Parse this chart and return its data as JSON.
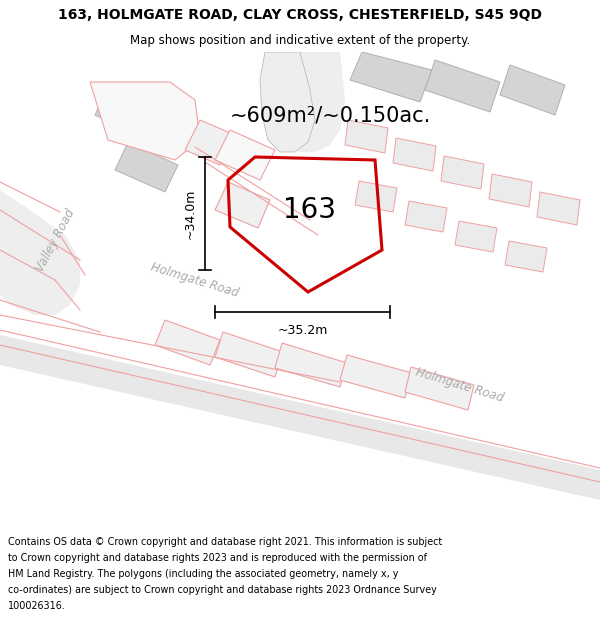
{
  "title": "163, HOLMGATE ROAD, CLAY CROSS, CHESTERFIELD, S45 9QD",
  "subtitle": "Map shows position and indicative extent of the property.",
  "area_label": "~609m²/~0.150ac.",
  "property_number": "163",
  "dim_vertical": "~34.0m",
  "dim_horizontal": "~35.2m",
  "road_label_valley": "Valley Road",
  "road_label_holmgate1": "Holmgate Road",
  "road_label_holmgate2": "Holmgate Road",
  "footer_lines": [
    "Contains OS data © Crown copyright and database right 2021. This information is subject",
    "to Crown copyright and database rights 2023 and is reproduced with the permission of",
    "HM Land Registry. The polygons (including the associated geometry, namely x, y",
    "co-ordinates) are subject to Crown copyright and database rights 2023 Ordnance Survey",
    "100026316."
  ],
  "map_bg": "#f8f8f8",
  "title_bg": "#ffffff",
  "footer_bg": "#ffffff",
  "red_color": "#cc0000",
  "pink_edge": "#f0a0a0",
  "gray_fill": "#d0d0d0",
  "gray_edge": "#b0b0b0",
  "building_fill": "#d4d4d4",
  "building_edge": "#c0c0c0"
}
